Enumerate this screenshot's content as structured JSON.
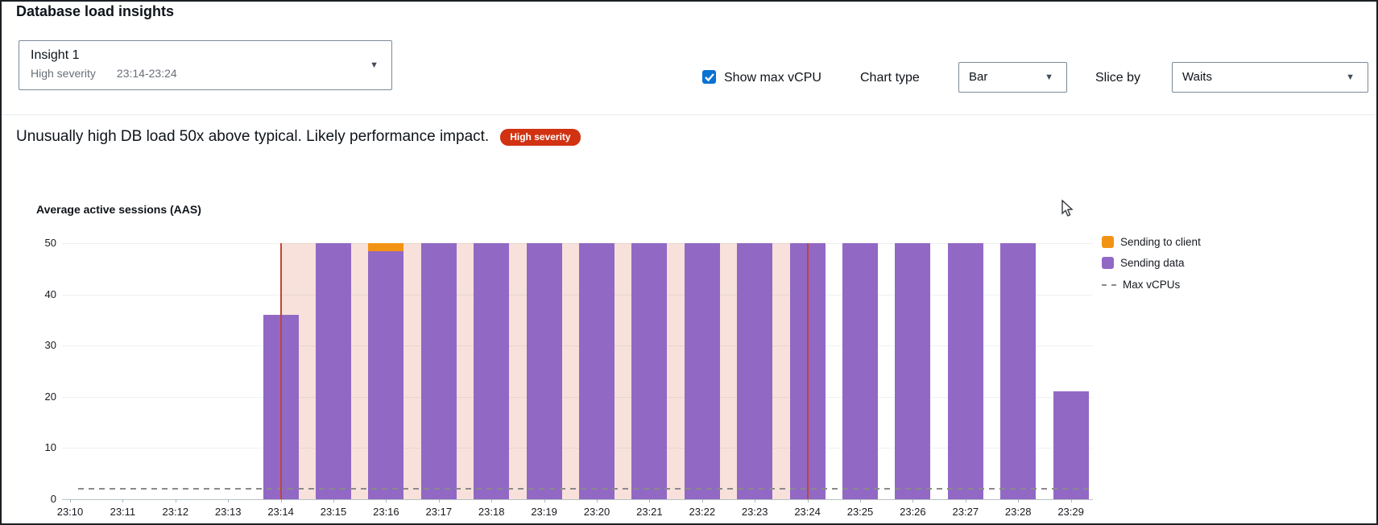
{
  "page": {
    "title": "Database load insights"
  },
  "insight_selector": {
    "name": "Insight 1",
    "severity": "High severity",
    "time_range": "23:14-23:24"
  },
  "controls": {
    "show_max_vcpu_label": "Show max vCPU",
    "show_max_vcpu_checked": true,
    "chart_type_label": "Chart type",
    "chart_type_value": "Bar",
    "slice_by_label": "Slice by",
    "slice_by_value": "Waits"
  },
  "alert": {
    "message": "Unusually high DB load 50x above typical. Likely performance impact.",
    "badge": "High severity",
    "badge_color": "#d13212"
  },
  "chart_data": {
    "type": "bar",
    "title": "Average active sessions (AAS)",
    "categories": [
      "23:10",
      "23:11",
      "23:12",
      "23:13",
      "23:14",
      "23:15",
      "23:16",
      "23:17",
      "23:18",
      "23:19",
      "23:20",
      "23:21",
      "23:22",
      "23:23",
      "23:24",
      "23:25",
      "23:26",
      "23:27",
      "23:28",
      "23:29"
    ],
    "series": [
      {
        "name": "Sending to client",
        "color": "#f39315",
        "values": [
          0,
          0,
          0,
          0,
          0,
          0,
          1.5,
          0,
          0,
          0,
          0,
          0,
          0,
          0,
          0,
          0,
          0,
          0,
          0,
          0
        ]
      },
      {
        "name": "Sending data",
        "color": "#9268c5",
        "values": [
          0,
          0,
          0,
          0,
          36,
          50,
          48.5,
          50,
          50,
          50,
          50,
          50,
          50,
          50,
          50,
          50,
          50,
          50,
          50,
          21
        ]
      }
    ],
    "max_vcpus": {
      "label": "Max vCPUs",
      "value": 2,
      "color": "#8a8a8a"
    },
    "ylim": [
      0,
      50
    ],
    "yticks": [
      0,
      10,
      20,
      30,
      40,
      50
    ],
    "grid": true,
    "legend_position": "right",
    "highlight": {
      "from": "23:14",
      "to": "23:24",
      "fill": "rgba(214,88,56,0.18)",
      "edge_color": "#c14436"
    }
  }
}
